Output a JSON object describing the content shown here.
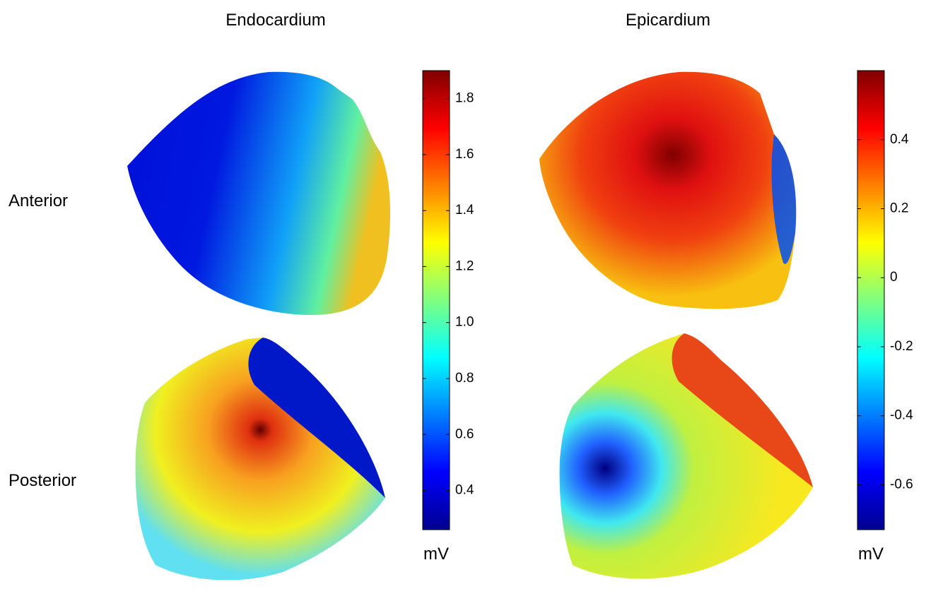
{
  "rows": [
    "Anterior",
    "Posterior"
  ],
  "chart_data": [
    {
      "type": "surface-map",
      "title": "Endocardium",
      "colorbar_label": "mV",
      "zlim": [
        0.26,
        1.9
      ],
      "zticks": [
        0.4,
        0.6,
        0.8,
        {
          "value": 1,
          "label": "1.0"
        },
        1.2,
        1.4,
        1.6,
        1.8
      ]
    },
    {
      "type": "surface-map",
      "title": "Epicardium",
      "colorbar_label": "mV",
      "zlim": [
        -0.73,
        0.6
      ],
      "zticks": [
        -0.6,
        -0.4,
        -0.2,
        0,
        0.2,
        0.4
      ]
    }
  ]
}
